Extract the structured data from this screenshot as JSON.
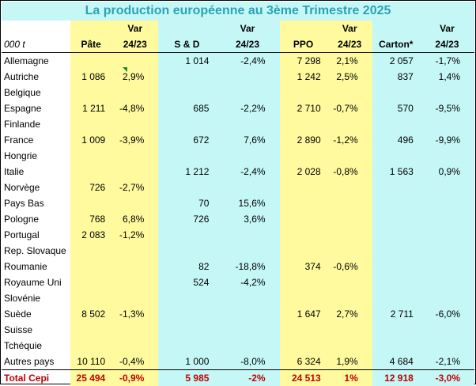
{
  "title": "La production européenne au 3ème Trimestre 2025",
  "header": {
    "unit": "000 t",
    "col_pate": "Pâte",
    "col_sd": "S & D",
    "col_ppo": "PPO",
    "col_carton": "Carton*",
    "var_top": "Var",
    "var_bottom": "24/23"
  },
  "rows": [
    {
      "country": "Allemagne",
      "pate": "",
      "pate_var": "",
      "sd": "1 014",
      "sd_var": "-2,4%",
      "ppo": "7 298",
      "ppo_var": "2,1%",
      "carton": "2 057",
      "carton_var": "-1,7%"
    },
    {
      "country": "Autriche",
      "pate": "1 086",
      "pate_var": "2,9%",
      "sd": "",
      "sd_var": "",
      "ppo": "1 242",
      "ppo_var": "2,5%",
      "carton": "837",
      "carton_var": "1,4%"
    },
    {
      "country": "Belgique",
      "pate": "",
      "pate_var": "",
      "sd": "",
      "sd_var": "",
      "ppo": "",
      "ppo_var": "",
      "carton": "",
      "carton_var": ""
    },
    {
      "country": "Espagne",
      "pate": "1 211",
      "pate_var": "-4,8%",
      "sd": "685",
      "sd_var": "-2,2%",
      "ppo": "2 710",
      "ppo_var": "-0,7%",
      "carton": "570",
      "carton_var": "-9,5%"
    },
    {
      "country": "Finlande",
      "pate": "",
      "pate_var": "",
      "sd": "",
      "sd_var": "",
      "ppo": "",
      "ppo_var": "",
      "carton": "",
      "carton_var": ""
    },
    {
      "country": "France",
      "pate": "1 009",
      "pate_var": "-3,9%",
      "sd": "672",
      "sd_var": "7,6%",
      "ppo": "2 890",
      "ppo_var": "-1,2%",
      "carton": "496",
      "carton_var": "-9,9%"
    },
    {
      "country": "Hongrie",
      "pate": "",
      "pate_var": "",
      "sd": "",
      "sd_var": "",
      "ppo": "",
      "ppo_var": "",
      "carton": "",
      "carton_var": ""
    },
    {
      "country": "Italie",
      "pate": "",
      "pate_var": "",
      "sd": "1 212",
      "sd_var": "-2,4%",
      "ppo": "2 028",
      "ppo_var": "-0,8%",
      "carton": "1 563",
      "carton_var": "0,9%"
    },
    {
      "country": "Norvège",
      "pate": "726",
      "pate_var": "-2,7%",
      "sd": "",
      "sd_var": "",
      "ppo": "",
      "ppo_var": "",
      "carton": "",
      "carton_var": ""
    },
    {
      "country": "Pays Bas",
      "pate": "",
      "pate_var": "",
      "sd": "70",
      "sd_var": "15,6%",
      "ppo": "",
      "ppo_var": "",
      "carton": "",
      "carton_var": ""
    },
    {
      "country": "Pologne",
      "pate": "768",
      "pate_var": "6,8%",
      "sd": "726",
      "sd_var": "3,6%",
      "ppo": "",
      "ppo_var": "",
      "carton": "",
      "carton_var": ""
    },
    {
      "country": "Portugal",
      "pate": "2 083",
      "pate_var": "-1,2%",
      "sd": "",
      "sd_var": "",
      "ppo": "",
      "ppo_var": "",
      "carton": "",
      "carton_var": ""
    },
    {
      "country": "Rep. Slovaque",
      "pate": "",
      "pate_var": "",
      "sd": "",
      "sd_var": "",
      "ppo": "",
      "ppo_var": "",
      "carton": "",
      "carton_var": ""
    },
    {
      "country": "Roumanie",
      "pate": "",
      "pate_var": "",
      "sd": "82",
      "sd_var": "-18,8%",
      "ppo": "374",
      "ppo_var": "-0,6%",
      "carton": "",
      "carton_var": ""
    },
    {
      "country": "Royaume Uni",
      "pate": "",
      "pate_var": "",
      "sd": "524",
      "sd_var": "-4,2%",
      "ppo": "",
      "ppo_var": "",
      "carton": "",
      "carton_var": ""
    },
    {
      "country": "Slovénie",
      "pate": "",
      "pate_var": "",
      "sd": "",
      "sd_var": "",
      "ppo": "",
      "ppo_var": "",
      "carton": "",
      "carton_var": ""
    },
    {
      "country": "Suède",
      "pate": "8 502",
      "pate_var": "-1,3%",
      "sd": "",
      "sd_var": "",
      "ppo": "1 647",
      "ppo_var": "2,7%",
      "carton": "2 711",
      "carton_var": "-6,0%"
    },
    {
      "country": "Suisse",
      "pate": "",
      "pate_var": "",
      "sd": "",
      "sd_var": "",
      "ppo": "",
      "ppo_var": "",
      "carton": "",
      "carton_var": ""
    },
    {
      "country": "Tchéquie",
      "pate": "",
      "pate_var": "",
      "sd": "",
      "sd_var": "",
      "ppo": "",
      "ppo_var": "",
      "carton": "",
      "carton_var": ""
    },
    {
      "country": "Autres pays",
      "pate": "10 110",
      "pate_var": "-0,4%",
      "sd": "1 000",
      "sd_var": "-8,0%",
      "ppo": "6 324",
      "ppo_var": "1,9%",
      "carton": "4 684",
      "carton_var": "-2,1%"
    }
  ],
  "total": {
    "country": "Total Cepi",
    "pate": "25 494",
    "pate_var": "-0,9%",
    "sd": "5 985",
    "sd_var": "-2%",
    "ppo": "24 513",
    "ppo_var": "1%",
    "carton": "12 918",
    "carton_var": "-3,0%"
  },
  "colors": {
    "yellow": "#fffa9e",
    "cyan": "#c6f7f7",
    "title_text": "#2ba3b5",
    "total_text": "#c00000"
  }
}
